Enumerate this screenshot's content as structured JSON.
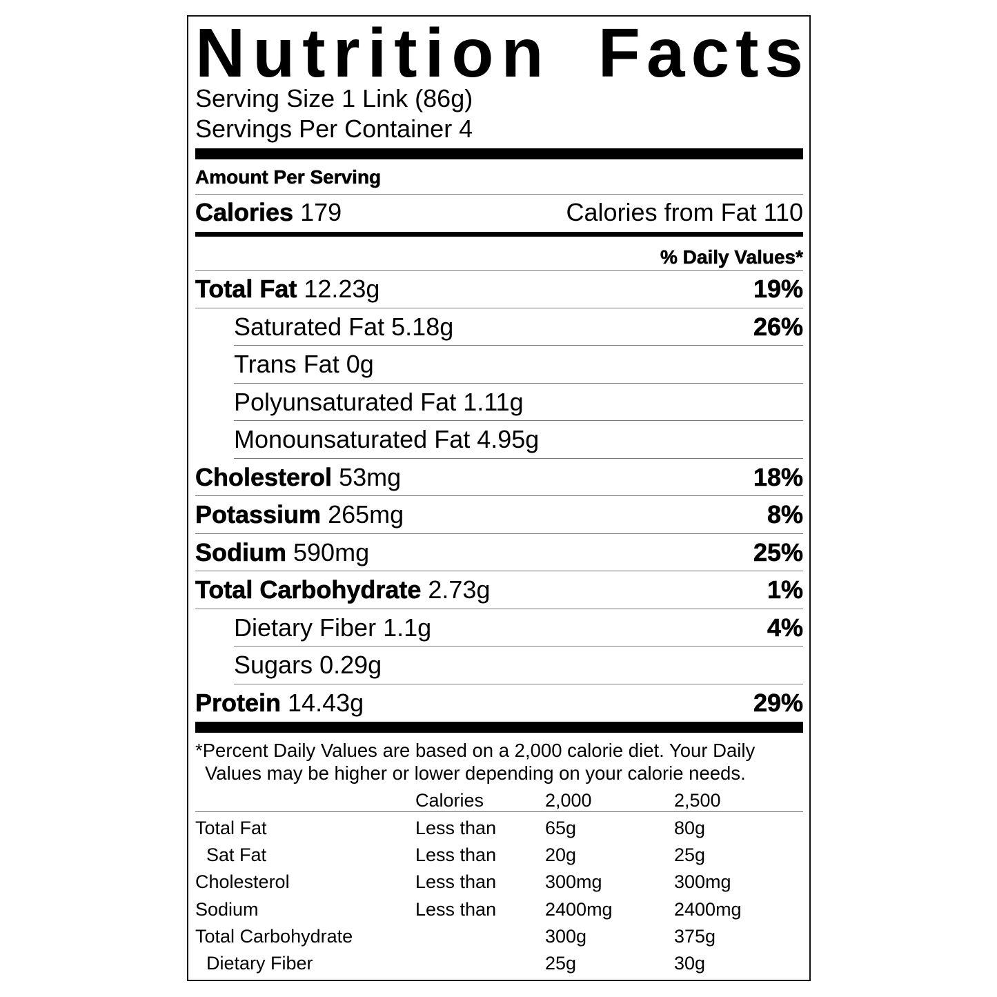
{
  "title_words": [
    "Nutrition",
    "Facts"
  ],
  "serving_size": "Serving Size 1 Link (86g)",
  "servings_per_container": "Servings Per Container 4",
  "amount_per_serving": "Amount Per Serving",
  "calories": {
    "label": "Calories",
    "value": "179",
    "from_fat": "Calories from Fat 110"
  },
  "daily_values_header": "% Daily Values*",
  "nutrients": [
    {
      "name": "Total Fat",
      "amount": "12.23g",
      "dv": "19%",
      "indent": false
    },
    {
      "name": "Saturated Fat",
      "amount": "5.18g",
      "dv": "26%",
      "indent": true
    },
    {
      "name": "Trans Fat",
      "amount": "0g",
      "dv": "",
      "indent": true
    },
    {
      "name": "Polyunsaturated Fat",
      "amount": "1.11g",
      "dv": "",
      "indent": true
    },
    {
      "name": "Monounsaturated Fat",
      "amount": "4.95g",
      "dv": "",
      "indent": true
    },
    {
      "name": "Cholesterol",
      "amount": "53mg",
      "dv": "18%",
      "indent": false
    },
    {
      "name": "Potassium",
      "amount": "265mg",
      "dv": "8%",
      "indent": false
    },
    {
      "name": "Sodium",
      "amount": "590mg",
      "dv": "25%",
      "indent": false
    },
    {
      "name": "Total Carbohydrate",
      "amount": "2.73g",
      "dv": "1%",
      "indent": false
    },
    {
      "name": "Dietary Fiber",
      "amount": "1.1g",
      "dv": "4%",
      "indent": true
    },
    {
      "name": "Sugars",
      "amount": "0.29g",
      "dv": "",
      "indent": true
    },
    {
      "name": "Protein",
      "amount": "14.43g",
      "dv": "29%",
      "indent": false
    }
  ],
  "footnote": [
    "*Percent Daily Values are based on a 2,000 calorie diet. Your Daily",
    "Values may be higher or lower depending on your calorie needs."
  ],
  "reference_table": {
    "header": [
      "",
      "Calories",
      "2,000",
      "2,500"
    ],
    "rows": [
      [
        "Total Fat",
        "Less than",
        "65g",
        "80g"
      ],
      [
        "Sat Fat",
        "Less than",
        "20g",
        "25g"
      ],
      [
        "Cholesterol",
        "Less than",
        "300mg",
        "300mg"
      ],
      [
        "Sodium",
        "Less than",
        "2400mg",
        "2400mg"
      ],
      [
        "Total Carbohydrate",
        "",
        "300g",
        "375g"
      ],
      [
        "Dietary Fiber",
        "",
        "25g",
        "30g"
      ]
    ]
  }
}
